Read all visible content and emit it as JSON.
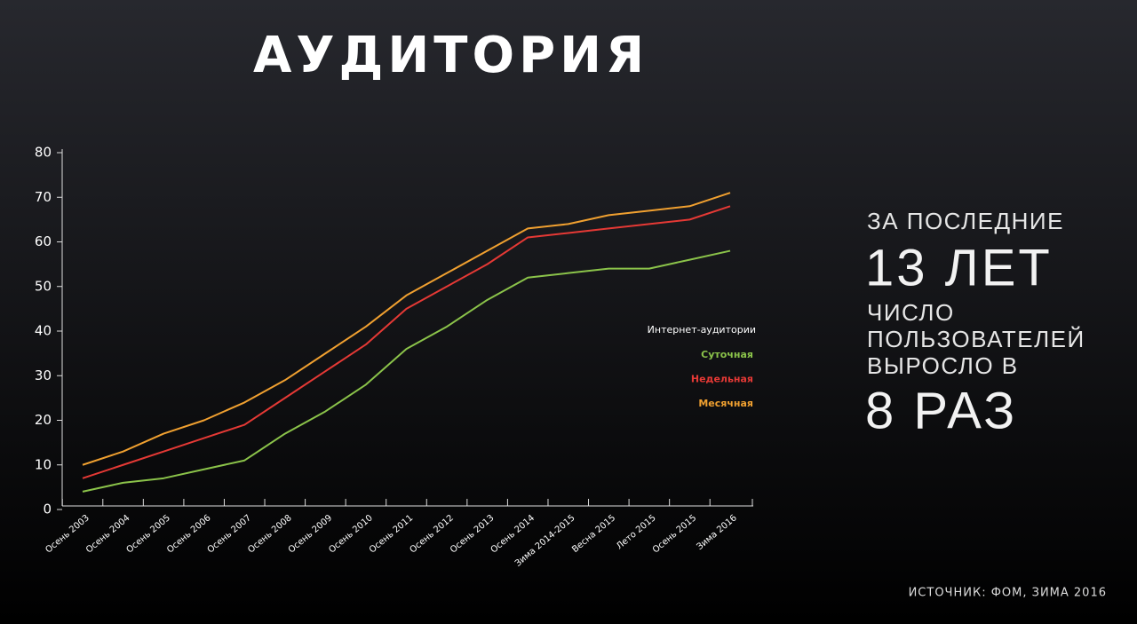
{
  "chart_data": {
    "type": "line",
    "categories": [
      "Осень 2003",
      "Осень 2004",
      "Осень 2005",
      "Осень 2006",
      "Осень 2007",
      "Осень 2008",
      "Осень 2009",
      "Осень 2010",
      "Осень 2011",
      "Осень 2012",
      "Осень 2013",
      "Осень 2014",
      "Зима 2014-2015",
      "Весна 2015",
      "Лето 2015",
      "Осень 2015",
      "Зима 2016"
    ],
    "legend_title": "Интернет-аудитории",
    "series": [
      {
        "name": "Суточная",
        "color": "#8bc34a",
        "values": [
          4,
          6,
          7,
          9,
          11,
          17,
          22,
          28,
          36,
          41,
          47,
          52,
          53,
          54,
          54,
          56,
          58
        ]
      },
      {
        "name": "Недельная",
        "color": "#e53935",
        "values": [
          7,
          10,
          13,
          16,
          19,
          25,
          31,
          37,
          45,
          50,
          55,
          61,
          62,
          63,
          64,
          65,
          68
        ]
      },
      {
        "name": "Месячная",
        "color": "#f0a030",
        "values": [
          10,
          13,
          17,
          20,
          24,
          29,
          35,
          41,
          48,
          53,
          58,
          63,
          64,
          66,
          67,
          68,
          71
        ]
      }
    ],
    "ylim": [
      0,
      80
    ],
    "yticks": [
      0,
      10,
      20,
      30,
      40,
      50,
      60,
      70,
      80
    ],
    "grid": false
  },
  "slide": {
    "title": "АУДИТОРИЯ",
    "headline": {
      "intro": "ЗА ПОСЛЕДНИЕ",
      "period": "13 ЛЕТ",
      "lines": [
        "ЧИСЛО",
        "ПОЛЬЗОВАТЕЛЕЙ",
        "ВЫРОСЛО В"
      ],
      "result": "8 РАЗ"
    },
    "source": "ИСТОЧНИК: ФОМ, ЗИМА 2016"
  }
}
